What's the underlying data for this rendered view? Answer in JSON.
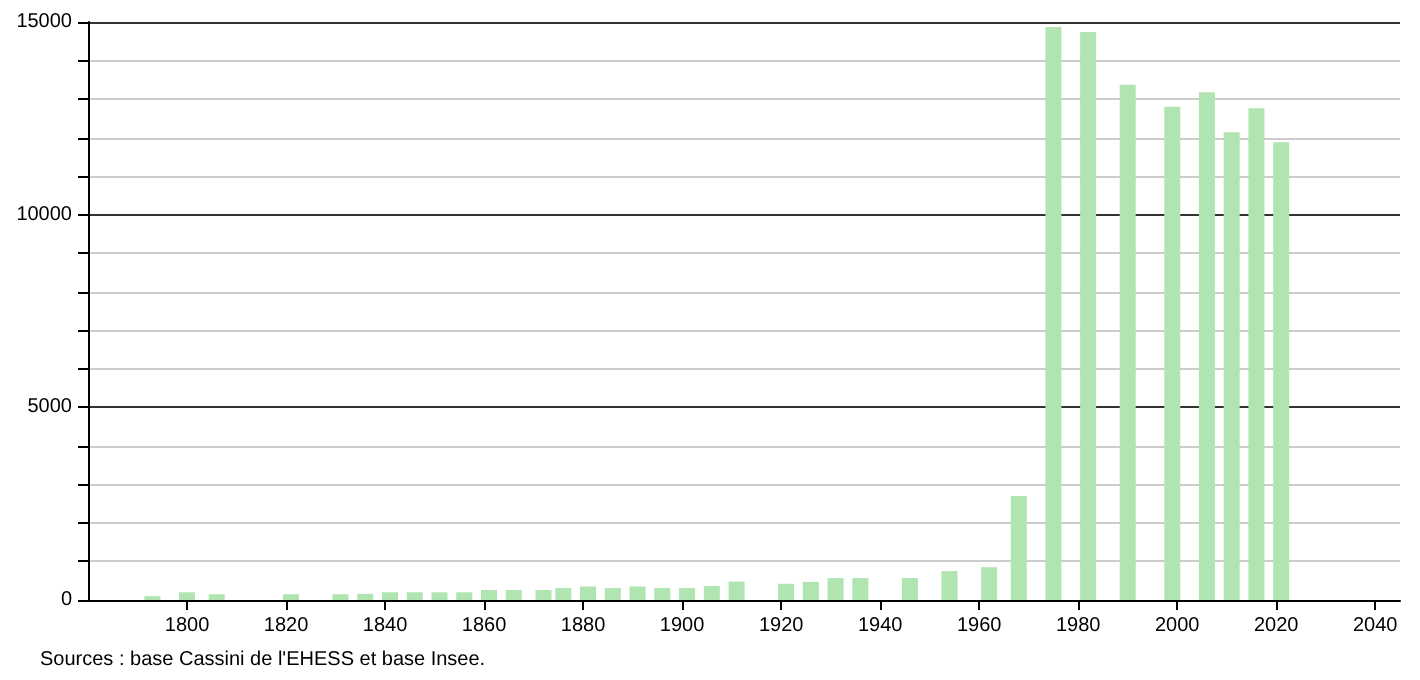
{
  "chart_data": {
    "type": "bar",
    "color": "#b0e4b0",
    "x": [
      1793,
      1800,
      1806,
      1821,
      1831,
      1836,
      1841,
      1846,
      1851,
      1856,
      1861,
      1866,
      1872,
      1876,
      1881,
      1886,
      1891,
      1896,
      1901,
      1906,
      1911,
      1921,
      1926,
      1931,
      1936,
      1946,
      1954,
      1962,
      1968,
      1975,
      1982,
      1990,
      1999,
      2006,
      2011,
      2016,
      2021
    ],
    "values": [
      100,
      200,
      150,
      150,
      150,
      160,
      200,
      200,
      200,
      200,
      260,
      260,
      260,
      310,
      350,
      310,
      350,
      310,
      310,
      360,
      480,
      420,
      470,
      570,
      570,
      570,
      750,
      850,
      2700,
      14870,
      14740,
      13370,
      12800,
      13180,
      12140,
      12760,
      11880
    ],
    "xlim": [
      1780,
      2045
    ],
    "xticks": [
      1800,
      1820,
      1840,
      1860,
      1880,
      1900,
      1920,
      1940,
      1960,
      1980,
      2000,
      2020,
      2040
    ],
    "ylim": [
      0,
      15000
    ],
    "yticks": [
      0,
      {
        "value": 1000,
        "label": null
      },
      {
        "value": 2000,
        "label": null
      },
      {
        "value": 3000,
        "label": null
      },
      {
        "value": 4000,
        "label": null
      },
      5000,
      {
        "value": 6000,
        "label": null
      },
      {
        "value": 7000,
        "label": null
      },
      {
        "value": 8000,
        "label": null
      },
      {
        "value": 9000,
        "label": null
      },
      10000,
      {
        "value": 11000,
        "label": null
      },
      {
        "value": 12000,
        "label": null
      },
      {
        "value": 13000,
        "label": null
      },
      {
        "value": 14000,
        "label": null
      },
      15000
    ],
    "grid": "y",
    "annotations": [
      "Sources : base Cassini de l'EHESS et base Insee."
    ]
  }
}
